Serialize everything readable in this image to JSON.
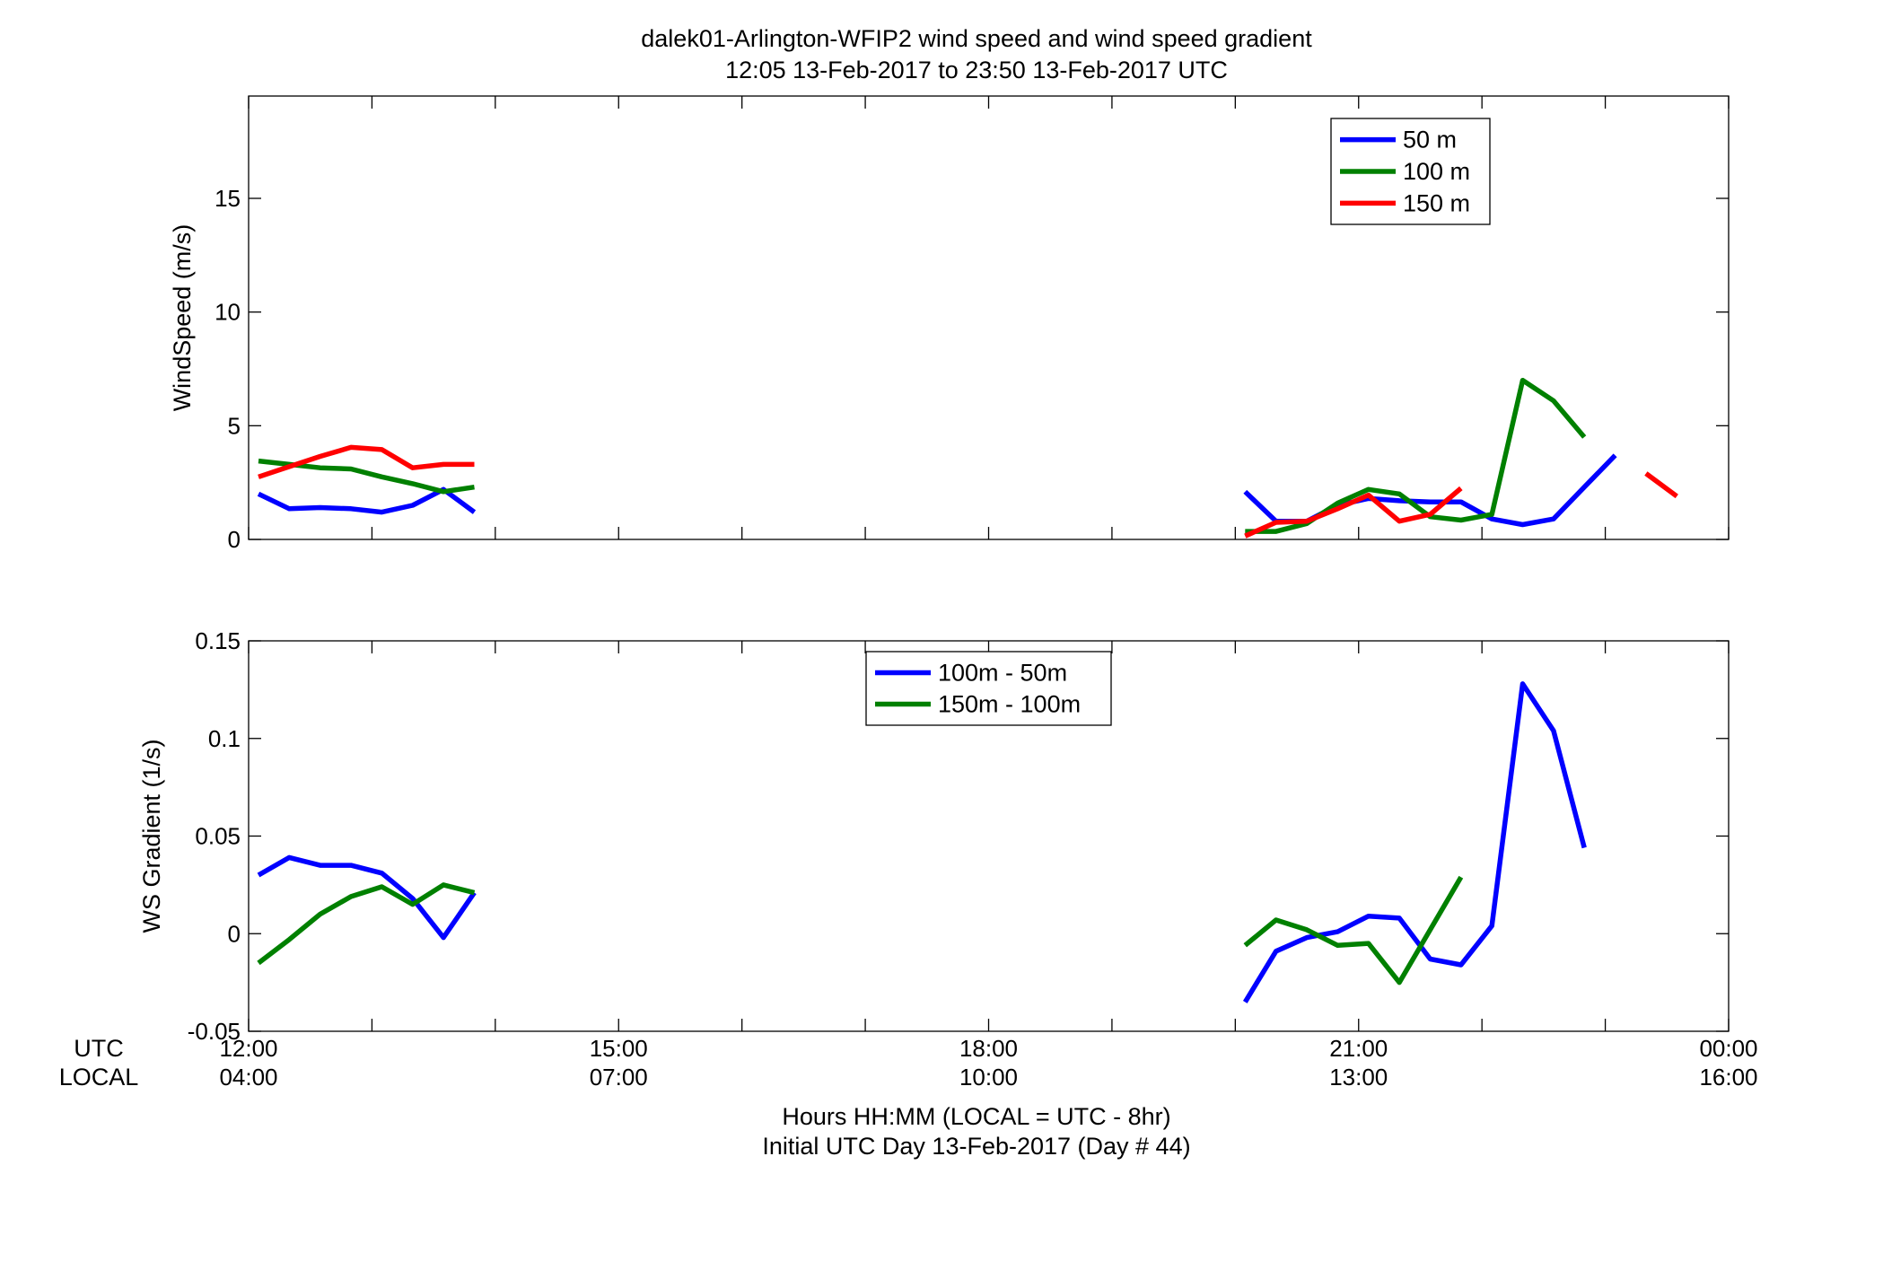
{
  "title": {
    "line1": "dalek01-Arlington-WFIP2  wind speed and wind speed gradient",
    "line2": "12:05 13-Feb-2017 to 23:50 13-Feb-2017  UTC"
  },
  "xaxis": {
    "utc_label": "UTC",
    "local_label": "LOCAL",
    "ticks_utc": [
      "12:00",
      "15:00",
      "18:00",
      "21:00",
      "00:00"
    ],
    "ticks_local": [
      "04:00",
      "07:00",
      "10:00",
      "13:00",
      "16:00"
    ],
    "xlabel_line1": "Hours HH:MM  (LOCAL = UTC - 8hr)",
    "xlabel_line2": "Initial UTC Day 13-Feb-2017 (Day # 44)"
  },
  "chart_data": [
    {
      "type": "line",
      "ylabel": "WindSpeed (m/s)",
      "xlim": [
        12,
        24
      ],
      "ylim": [
        0,
        19.5
      ],
      "yticks": [
        0,
        5,
        10,
        15
      ],
      "ytick_labels": [
        "0",
        "5",
        "10",
        "15"
      ],
      "grid": false,
      "legend_position": "top-right",
      "series": [
        {
          "name": "50 m",
          "color": "#0000ff",
          "segments": [
            [
              [
                12.08,
                2.0
              ],
              [
                12.33,
                1.35
              ],
              [
                12.58,
                1.4
              ],
              [
                12.83,
                1.35
              ],
              [
                13.08,
                1.2
              ],
              [
                13.33,
                1.5
              ],
              [
                13.58,
                2.2
              ],
              [
                13.83,
                1.2
              ]
            ],
            [
              [
                20.08,
                2.1
              ],
              [
                20.33,
                0.8
              ],
              [
                20.58,
                0.8
              ],
              [
                20.83,
                1.5
              ],
              [
                21.08,
                1.8
              ],
              [
                21.33,
                1.7
              ],
              [
                21.58,
                1.65
              ],
              [
                21.83,
                1.65
              ],
              [
                22.08,
                0.9
              ],
              [
                22.33,
                0.65
              ],
              [
                22.58,
                0.9
              ],
              [
                22.83,
                2.3
              ],
              [
                23.08,
                3.7
              ]
            ]
          ]
        },
        {
          "name": "100 m",
          "color": "#008000",
          "segments": [
            [
              [
                12.08,
                3.45
              ],
              [
                12.33,
                3.3
              ],
              [
                12.58,
                3.15
              ],
              [
                12.83,
                3.1
              ],
              [
                13.08,
                2.75
              ],
              [
                13.33,
                2.45
              ],
              [
                13.58,
                2.1
              ],
              [
                13.83,
                2.3
              ]
            ],
            [
              [
                20.08,
                0.35
              ],
              [
                20.33,
                0.35
              ],
              [
                20.58,
                0.7
              ],
              [
                20.83,
                1.6
              ],
              [
                21.08,
                2.2
              ],
              [
                21.33,
                2.0
              ],
              [
                21.58,
                1.0
              ],
              [
                21.83,
                0.85
              ],
              [
                22.08,
                1.1
              ],
              [
                22.33,
                7.0
              ],
              [
                22.58,
                6.1
              ],
              [
                22.83,
                4.5
              ]
            ]
          ]
        },
        {
          "name": "150 m",
          "color": "#ff0000",
          "segments": [
            [
              [
                12.08,
                2.75
              ],
              [
                12.33,
                3.2
              ],
              [
                12.58,
                3.65
              ],
              [
                12.83,
                4.05
              ],
              [
                13.08,
                3.95
              ],
              [
                13.33,
                3.15
              ],
              [
                13.58,
                3.3
              ],
              [
                13.83,
                3.3
              ]
            ],
            [
              [
                20.08,
                0.15
              ],
              [
                20.33,
                0.75
              ],
              [
                20.58,
                0.8
              ],
              [
                20.83,
                1.35
              ],
              [
                21.08,
                1.95
              ],
              [
                21.33,
                0.8
              ],
              [
                21.58,
                1.1
              ],
              [
                21.83,
                2.25
              ]
            ],
            [
              [
                23.33,
                2.9
              ],
              [
                23.58,
                1.9
              ]
            ]
          ]
        }
      ]
    },
    {
      "type": "line",
      "ylabel": "WS Gradient (1/s)",
      "xlim": [
        12,
        24
      ],
      "ylim": [
        -0.05,
        0.15
      ],
      "yticks": [
        -0.05,
        0,
        0.05,
        0.1,
        0.15
      ],
      "ytick_labels": [
        "-0.05",
        "0",
        "0.05",
        "0.1",
        "0.15"
      ],
      "grid": false,
      "legend_position": "top-center",
      "series": [
        {
          "name": "100m - 50m",
          "color": "#0000ff",
          "segments": [
            [
              [
                12.08,
                0.03
              ],
              [
                12.33,
                0.039
              ],
              [
                12.58,
                0.035
              ],
              [
                12.83,
                0.035
              ],
              [
                13.08,
                0.031
              ],
              [
                13.33,
                0.018
              ],
              [
                13.58,
                -0.002
              ],
              [
                13.83,
                0.021
              ]
            ],
            [
              [
                20.08,
                -0.035
              ],
              [
                20.33,
                -0.009
              ],
              [
                20.58,
                -0.002
              ],
              [
                20.83,
                0.001
              ],
              [
                21.08,
                0.009
              ],
              [
                21.33,
                0.008
              ],
              [
                21.58,
                -0.013
              ],
              [
                21.83,
                -0.016
              ],
              [
                22.08,
                0.004
              ],
              [
                22.33,
                0.128
              ],
              [
                22.58,
                0.104
              ],
              [
                22.83,
                0.044
              ]
            ]
          ]
        },
        {
          "name": "150m - 100m",
          "color": "#008000",
          "segments": [
            [
              [
                12.08,
                -0.015
              ],
              [
                12.33,
                -0.003
              ],
              [
                12.58,
                0.01
              ],
              [
                12.83,
                0.019
              ],
              [
                13.08,
                0.024
              ],
              [
                13.33,
                0.015
              ],
              [
                13.58,
                0.025
              ],
              [
                13.83,
                0.021
              ]
            ],
            [
              [
                20.08,
                -0.006
              ],
              [
                20.33,
                0.007
              ],
              [
                20.58,
                0.002
              ],
              [
                20.83,
                -0.006
              ],
              [
                21.08,
                -0.005
              ],
              [
                21.33,
                -0.025
              ],
              [
                21.58,
                0.002
              ],
              [
                21.83,
                0.029
              ]
            ]
          ]
        }
      ]
    }
  ]
}
